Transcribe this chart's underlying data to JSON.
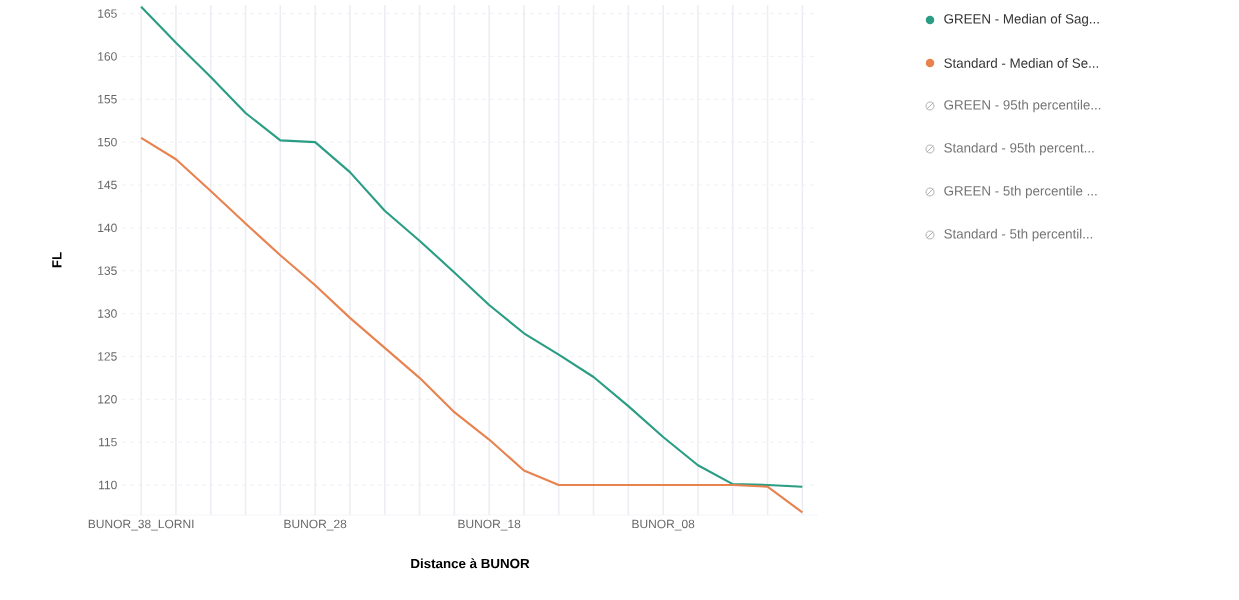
{
  "chart_data": {
    "type": "line",
    "xlabel": "Distance à BUNOR",
    "ylabel": "FL",
    "categories": [
      "BUNOR_38_LORNI",
      null,
      null,
      null,
      null,
      "BUNOR_28",
      null,
      null,
      null,
      null,
      "BUNOR_18",
      null,
      null,
      null,
      null,
      "BUNOR_08",
      null,
      null,
      null,
      null
    ],
    "ylim": [
      106.5,
      166
    ],
    "yticks": [
      110,
      115,
      120,
      125,
      130,
      135,
      140,
      145,
      150,
      155,
      160,
      165
    ],
    "grid": true,
    "legend": "top right",
    "series": [
      {
        "name": "GREEN - Median of Sag...",
        "color": "#2a9d84",
        "values": [
          165.8,
          161.6,
          157.6,
          153.4,
          150.2,
          150.0,
          146.5,
          142.0,
          138.5,
          134.8,
          131.0,
          127.7,
          125.2,
          122.6,
          119.2,
          115.6,
          112.3,
          110.1,
          110.0,
          109.8
        ]
      },
      {
        "name": "Standard - Median of Se...",
        "color": "#e8834f",
        "values": [
          150.5,
          148.0,
          144.3,
          140.5,
          136.8,
          133.3,
          129.5,
          126.0,
          122.5,
          118.5,
          115.3,
          111.7,
          110.0,
          110.0,
          110.0,
          110.0,
          110.0,
          110.0,
          109.8,
          106.8
        ]
      },
      {
        "name": "GREEN - 95th percentile...",
        "color": "#9e9e9e",
        "values": [
          null,
          null,
          null,
          null,
          null,
          null,
          null,
          null,
          null,
          null,
          null,
          null,
          null,
          null,
          null,
          null,
          null,
          null,
          null,
          null
        ]
      },
      {
        "name": "Standard - 95th percent...",
        "color": "#9e9e9e",
        "values": [
          null,
          null,
          null,
          null,
          null,
          null,
          null,
          null,
          null,
          null,
          null,
          null,
          null,
          null,
          null,
          null,
          null,
          null,
          null,
          null
        ]
      },
      {
        "name": "GREEN - 5th percentile ...",
        "color": "#9e9e9e",
        "values": [
          null,
          null,
          null,
          null,
          null,
          null,
          null,
          null,
          null,
          null,
          null,
          null,
          null,
          null,
          null,
          null,
          null,
          null,
          null,
          null
        ]
      },
      {
        "name": "Standard - 5th percentil...",
        "color": "#9e9e9e",
        "values": [
          null,
          null,
          null,
          null,
          null,
          null,
          null,
          null,
          null,
          null,
          null,
          null,
          null,
          null,
          null,
          null,
          null,
          null,
          null,
          null
        ]
      }
    ]
  }
}
